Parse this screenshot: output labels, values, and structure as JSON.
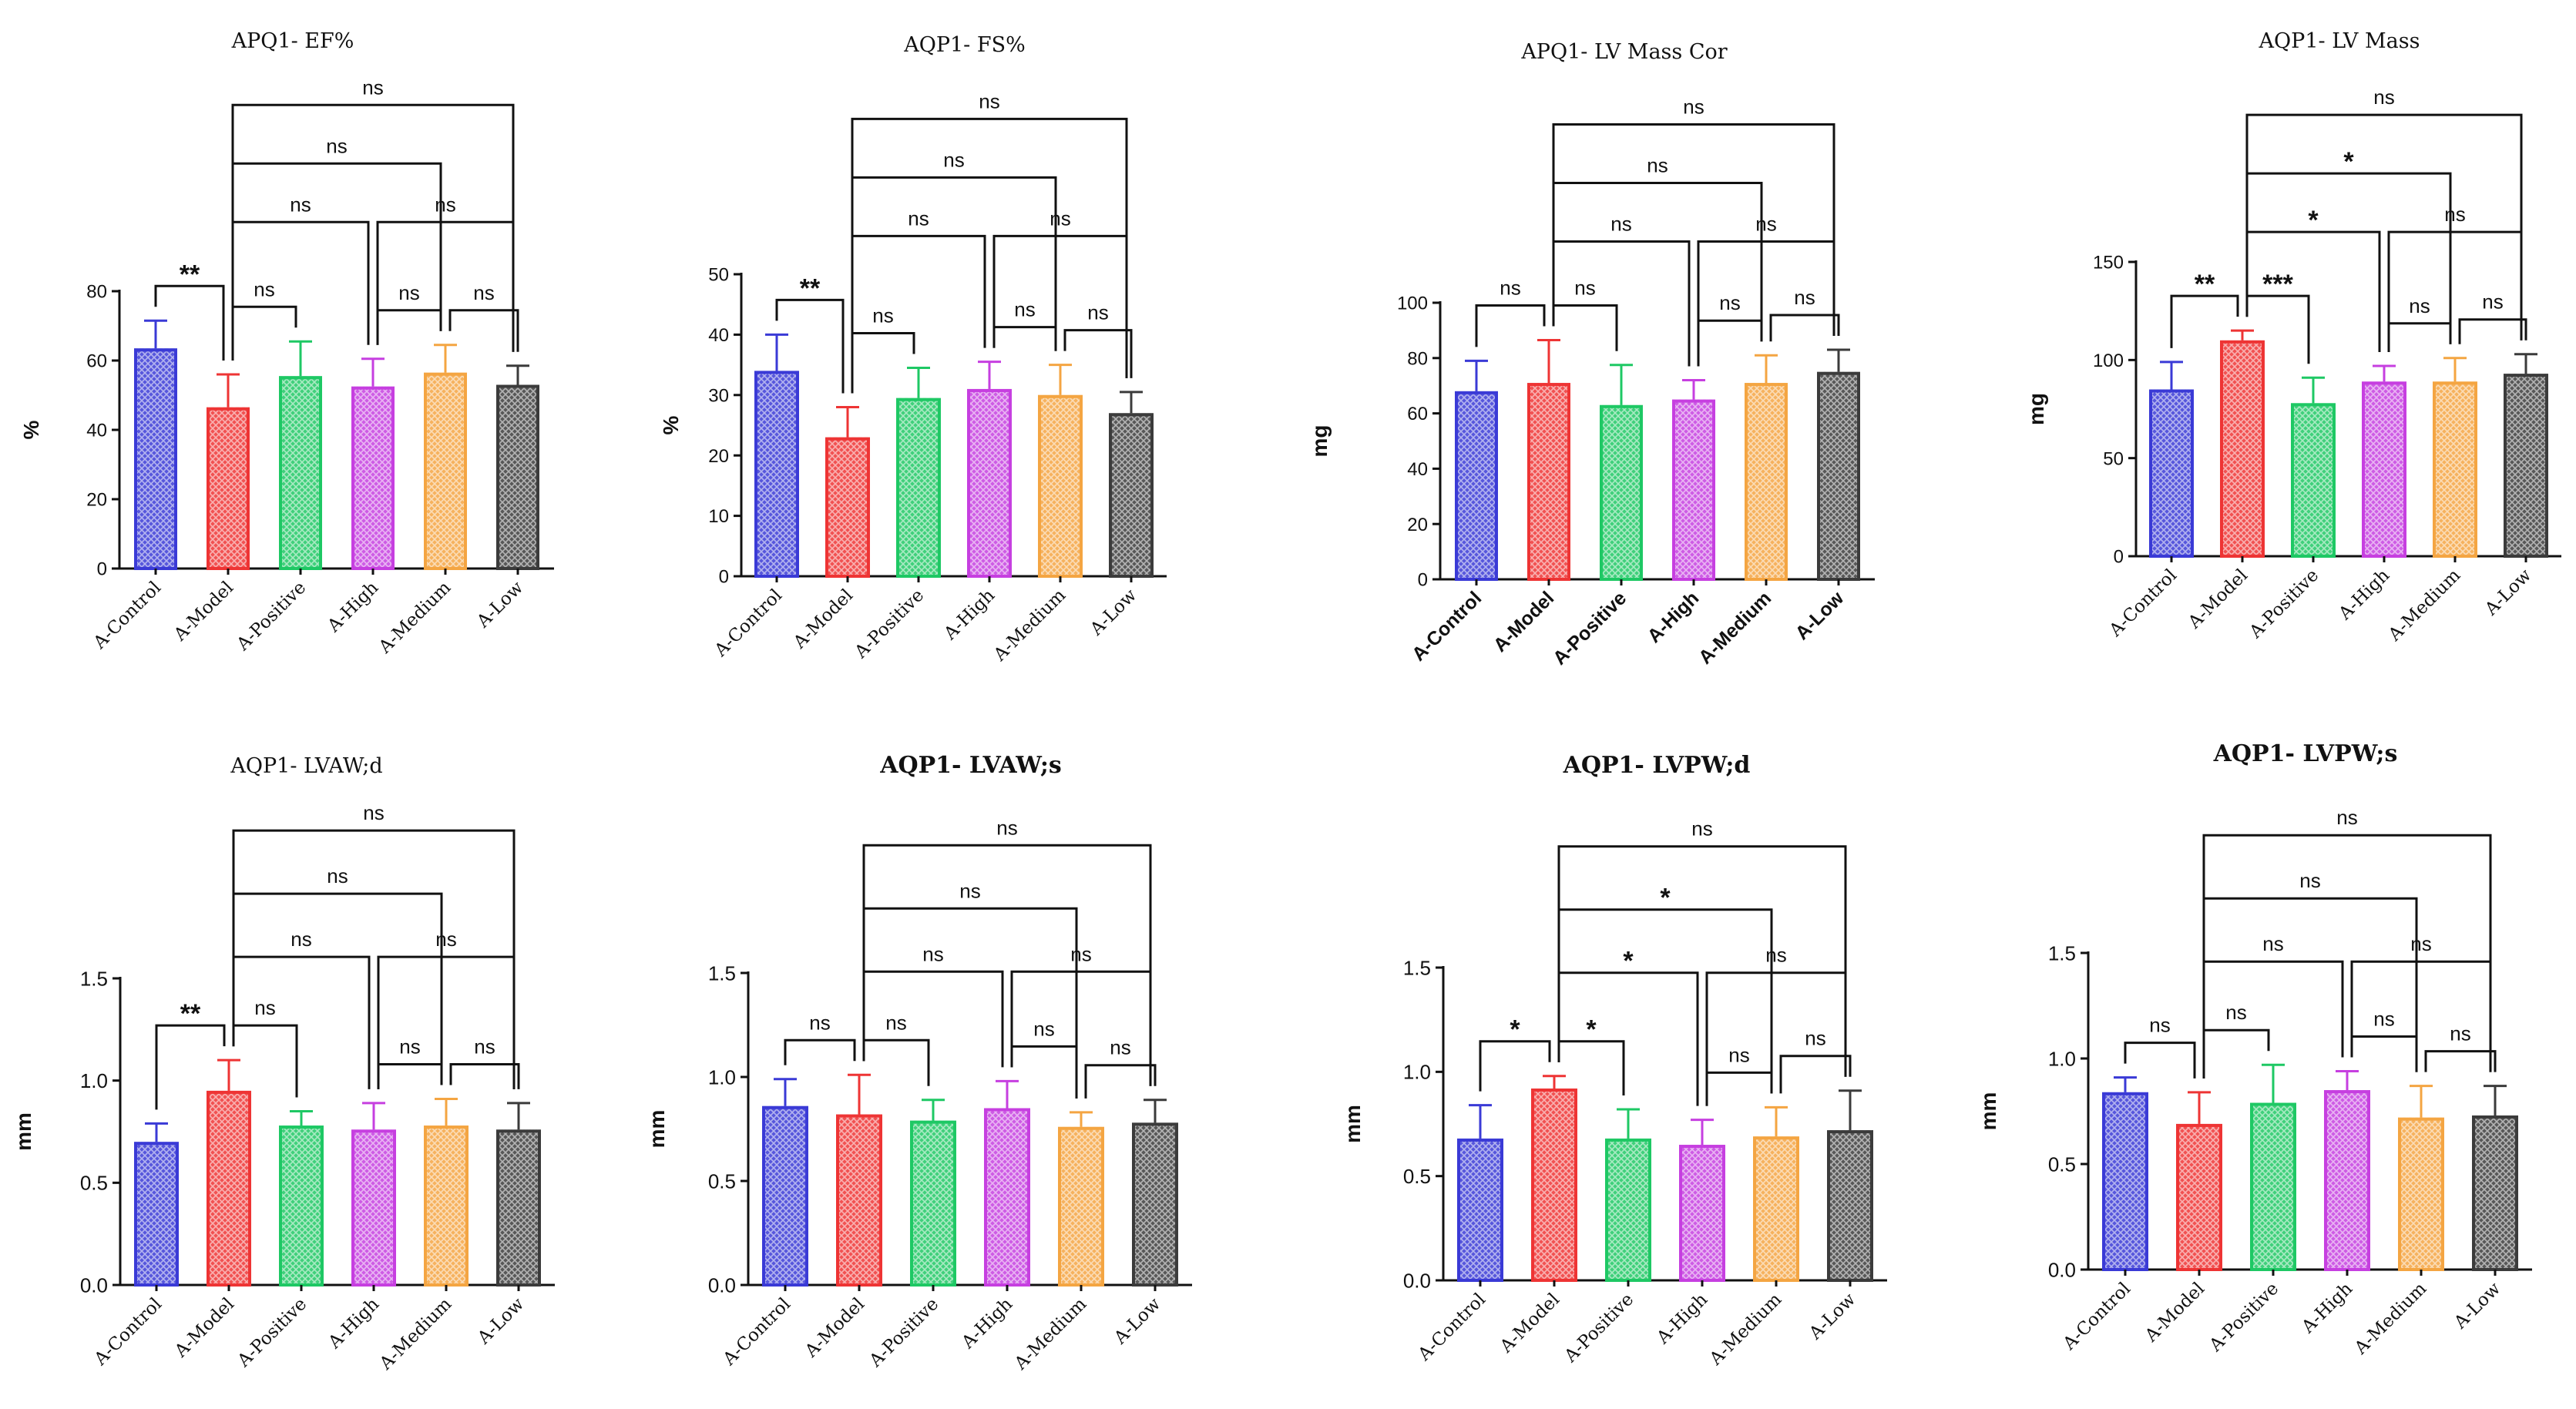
{
  "colors": {
    "A-Control": "#3a3ad6",
    "A-Model": "#ee3434",
    "A-Positive": "#1ec864",
    "A-High": "#c63fe0",
    "A-Medium": "#f4a542",
    "A-Low": "#3b3b3b"
  },
  "chart_data": [
    {
      "type": "bar",
      "title": "APQ1- EF%",
      "title_style": "serif",
      "label_style": "serif",
      "categories": [
        "A-Control",
        "A-Model",
        "A-Positive",
        "A-High",
        "A-Medium",
        "A-Low"
      ],
      "values": [
        63.5,
        46.5,
        55.5,
        52.5,
        56.5,
        53.0
      ],
      "errors": [
        8.0,
        9.5,
        10.0,
        8.0,
        8.0,
        5.5
      ],
      "ylabel": "%",
      "ylim": [
        0,
        80
      ],
      "yticks": [
        "0",
        "20",
        "40",
        "60",
        "80"
      ],
      "comparisons": [
        {
          "a": 0,
          "b": 1,
          "label": "**"
        },
        {
          "a": 1,
          "b": 2,
          "label": "ns"
        },
        {
          "a": 3,
          "b": 4,
          "label": "ns"
        },
        {
          "a": 4,
          "b": 5,
          "label": "ns"
        },
        {
          "a": 1,
          "b": 3,
          "label": "ns"
        },
        {
          "a": 3,
          "b": 5,
          "label": "ns"
        },
        {
          "a": 1,
          "b": 4,
          "label": "ns"
        },
        {
          "a": 1,
          "b": 5,
          "label": "ns"
        }
      ]
    },
    {
      "type": "bar",
      "title": "AQP1- FS%",
      "title_style": "serif",
      "label_style": "serif",
      "categories": [
        "A-Control",
        "A-Model",
        "A-Positive",
        "A-High",
        "A-Medium",
        "A-Low"
      ],
      "values": [
        34.0,
        23.0,
        29.5,
        31.0,
        30.0,
        27.0
      ],
      "errors": [
        6.0,
        5.0,
        5.0,
        4.5,
        5.0,
        3.5
      ],
      "ylabel": "%",
      "ylim": [
        0,
        50
      ],
      "yticks": [
        "0",
        "10",
        "20",
        "30",
        "40",
        "50"
      ],
      "comparisons": [
        {
          "a": 0,
          "b": 1,
          "label": "**"
        },
        {
          "a": 1,
          "b": 2,
          "label": "ns"
        },
        {
          "a": 3,
          "b": 4,
          "label": "ns"
        },
        {
          "a": 4,
          "b": 5,
          "label": "ns"
        },
        {
          "a": 1,
          "b": 3,
          "label": "ns"
        },
        {
          "a": 3,
          "b": 5,
          "label": "ns"
        },
        {
          "a": 1,
          "b": 4,
          "label": "ns"
        },
        {
          "a": 1,
          "b": 5,
          "label": "ns"
        }
      ]
    },
    {
      "type": "bar",
      "title": "APQ1- LV Mass Cor",
      "title_style": "serif",
      "label_style": "bold",
      "categories": [
        "A-Control",
        "A-Model",
        "A-Positive",
        "A-High",
        "A-Medium",
        "A-Low"
      ],
      "values": [
        68.0,
        71.0,
        63.0,
        65.0,
        71.0,
        75.0
      ],
      "errors": [
        11.0,
        15.5,
        14.5,
        7.0,
        10.0,
        8.0
      ],
      "ylabel": "mg",
      "ylim": [
        0,
        100
      ],
      "yticks": [
        "0",
        "20",
        "40",
        "60",
        "80",
        "100"
      ],
      "comparisons": [
        {
          "a": 0,
          "b": 1,
          "label": "ns"
        },
        {
          "a": 1,
          "b": 2,
          "label": "ns"
        },
        {
          "a": 3,
          "b": 4,
          "label": "ns"
        },
        {
          "a": 4,
          "b": 5,
          "label": "ns"
        },
        {
          "a": 1,
          "b": 3,
          "label": "ns"
        },
        {
          "a": 3,
          "b": 5,
          "label": "ns"
        },
        {
          "a": 1,
          "b": 4,
          "label": "ns"
        },
        {
          "a": 1,
          "b": 5,
          "label": "ns"
        }
      ]
    },
    {
      "type": "bar",
      "title": "AQP1- LV Mass",
      "title_style": "serif",
      "label_style": "serif",
      "categories": [
        "A-Control",
        "A-Model",
        "A-Positive",
        "A-High",
        "A-Medium",
        "A-Low"
      ],
      "values": [
        85.0,
        110.0,
        78.0,
        89.0,
        89.0,
        93.0
      ],
      "errors": [
        14.0,
        5.0,
        13.0,
        8.0,
        12.0,
        10.0
      ],
      "ylabel": "mg",
      "ylim": [
        0,
        150
      ],
      "yticks": [
        "0",
        "50",
        "100",
        "150"
      ],
      "comparisons": [
        {
          "a": 0,
          "b": 1,
          "label": "**"
        },
        {
          "a": 1,
          "b": 2,
          "label": "***"
        },
        {
          "a": 3,
          "b": 4,
          "label": "ns"
        },
        {
          "a": 4,
          "b": 5,
          "label": "ns"
        },
        {
          "a": 1,
          "b": 3,
          "label": "*"
        },
        {
          "a": 3,
          "b": 5,
          "label": "ns"
        },
        {
          "a": 1,
          "b": 4,
          "label": "*"
        },
        {
          "a": 1,
          "b": 5,
          "label": "ns"
        }
      ]
    },
    {
      "type": "bar",
      "title": "AQP1- LVAW;d",
      "title_style": "serif",
      "label_style": "serif",
      "categories": [
        "A-Control",
        "A-Model",
        "A-Positive",
        "A-High",
        "A-Medium",
        "A-Low"
      ],
      "values": [
        0.7,
        0.95,
        0.78,
        0.76,
        0.78,
        0.76
      ],
      "errors": [
        0.09,
        0.15,
        0.07,
        0.13,
        0.13,
        0.13
      ],
      "ylabel": "mm",
      "ylim": [
        0,
        1.5
      ],
      "yticks": [
        "0.0",
        "0.5",
        "1.0",
        "1.5"
      ],
      "comparisons": [
        {
          "a": 0,
          "b": 1,
          "label": "**"
        },
        {
          "a": 1,
          "b": 2,
          "label": "ns"
        },
        {
          "a": 3,
          "b": 4,
          "label": "ns"
        },
        {
          "a": 4,
          "b": 5,
          "label": "ns"
        },
        {
          "a": 1,
          "b": 3,
          "label": "ns"
        },
        {
          "a": 3,
          "b": 5,
          "label": "ns"
        },
        {
          "a": 1,
          "b": 4,
          "label": "ns"
        },
        {
          "a": 1,
          "b": 5,
          "label": "ns"
        }
      ]
    },
    {
      "type": "bar",
      "title": "AQP1- LVAW;s",
      "title_style": "serif-bold",
      "label_style": "serif",
      "categories": [
        "A-Control",
        "A-Model",
        "A-Positive",
        "A-High",
        "A-Medium",
        "A-Low"
      ],
      "values": [
        0.86,
        0.82,
        0.79,
        0.85,
        0.76,
        0.78
      ],
      "errors": [
        0.13,
        0.19,
        0.1,
        0.13,
        0.07,
        0.11
      ],
      "ylabel": "mm",
      "ylim": [
        0,
        1.5
      ],
      "yticks": [
        "0.0",
        "0.5",
        "1.0",
        "1.5"
      ],
      "comparisons": [
        {
          "a": 0,
          "b": 1,
          "label": "ns"
        },
        {
          "a": 1,
          "b": 2,
          "label": "ns"
        },
        {
          "a": 3,
          "b": 4,
          "label": "ns"
        },
        {
          "a": 4,
          "b": 5,
          "label": "ns"
        },
        {
          "a": 1,
          "b": 3,
          "label": "ns"
        },
        {
          "a": 3,
          "b": 5,
          "label": "ns"
        },
        {
          "a": 1,
          "b": 4,
          "label": "ns"
        },
        {
          "a": 1,
          "b": 5,
          "label": "ns"
        }
      ]
    },
    {
      "type": "bar",
      "title": "AQP1- LVPW;d",
      "title_style": "serif-bold",
      "label_style": "serif",
      "categories": [
        "A-Control",
        "A-Model",
        "A-Positive",
        "A-High",
        "A-Medium",
        "A-Low"
      ],
      "values": [
        0.68,
        0.92,
        0.68,
        0.65,
        0.69,
        0.72
      ],
      "errors": [
        0.16,
        0.06,
        0.14,
        0.12,
        0.14,
        0.19
      ],
      "ylabel": "mm",
      "ylim": [
        0,
        1.5
      ],
      "yticks": [
        "0.0",
        "0.5",
        "1.0",
        "1.5"
      ],
      "comparisons": [
        {
          "a": 0,
          "b": 1,
          "label": "*"
        },
        {
          "a": 1,
          "b": 2,
          "label": "*"
        },
        {
          "a": 3,
          "b": 4,
          "label": "ns"
        },
        {
          "a": 4,
          "b": 5,
          "label": "ns"
        },
        {
          "a": 1,
          "b": 3,
          "label": "*"
        },
        {
          "a": 3,
          "b": 5,
          "label": "ns"
        },
        {
          "a": 1,
          "b": 4,
          "label": "*"
        },
        {
          "a": 1,
          "b": 5,
          "label": "ns"
        }
      ]
    },
    {
      "type": "bar",
      "title": "AQP1- LVPW;s",
      "title_style": "serif-bold",
      "label_style": "serif",
      "categories": [
        "A-Control",
        "A-Model",
        "A-Positive",
        "A-High",
        "A-Medium",
        "A-Low"
      ],
      "values": [
        0.84,
        0.69,
        0.79,
        0.85,
        0.72,
        0.73
      ],
      "errors": [
        0.07,
        0.15,
        0.18,
        0.09,
        0.15,
        0.14
      ],
      "ylabel": "mm",
      "ylim": [
        0,
        1.5
      ],
      "yticks": [
        "0.0",
        "0.5",
        "1.0",
        "1.5"
      ],
      "comparisons": [
        {
          "a": 0,
          "b": 1,
          "label": "ns"
        },
        {
          "a": 1,
          "b": 2,
          "label": "ns"
        },
        {
          "a": 3,
          "b": 4,
          "label": "ns"
        },
        {
          "a": 4,
          "b": 5,
          "label": "ns"
        },
        {
          "a": 1,
          "b": 3,
          "label": "ns"
        },
        {
          "a": 3,
          "b": 5,
          "label": "ns"
        },
        {
          "a": 1,
          "b": 4,
          "label": "ns"
        },
        {
          "a": 1,
          "b": 5,
          "label": "ns"
        }
      ]
    }
  ]
}
